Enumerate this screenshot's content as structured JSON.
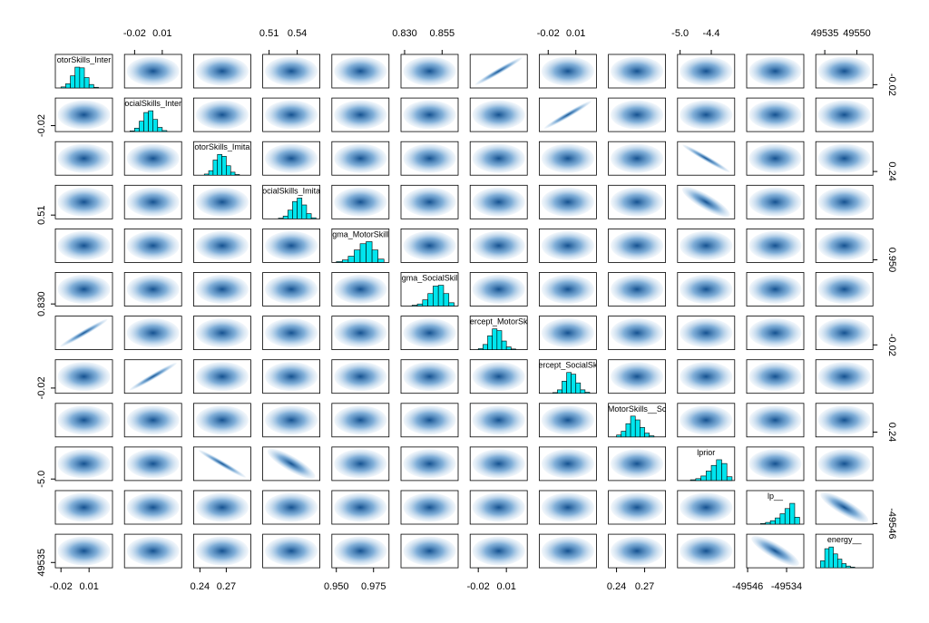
{
  "chart_data": {
    "type": "pairs",
    "color": "#00e5ee",
    "point_color": "#0b5a9c",
    "variables": [
      {
        "label": "otorSkills_Inter",
        "lim": [
          -0.026,
          0.035
        ],
        "xticks": [
          -0.02,
          0.01
        ],
        "yticks": [
          -0.02
        ],
        "bins": [
          -0.02,
          -0.015,
          -0.01,
          -0.005,
          0,
          0.005,
          0.01,
          0.015,
          0.02
        ],
        "counts": [
          3,
          12,
          35,
          60,
          58,
          30,
          10,
          2
        ]
      },
      {
        "label": "ocialSkills_Inter",
        "lim": [
          -0.031,
          0.031
        ],
        "xticks": [
          -0.02,
          0.01
        ],
        "yticks": [
          -0.02
        ],
        "bins": [
          -0.025,
          -0.02,
          -0.015,
          -0.01,
          -0.005,
          0,
          0.005,
          0.01,
          0.015
        ],
        "counts": [
          2,
          10,
          30,
          55,
          60,
          35,
          12,
          3
        ]
      },
      {
        "label": "otorSkills_Imita",
        "lim": [
          0.2328,
          0.2979
        ],
        "xticks": [
          0.24,
          0.27
        ],
        "yticks": [
          0.24
        ],
        "bins": [
          0.245,
          0.25,
          0.255,
          0.26,
          0.265,
          0.27,
          0.275,
          0.28,
          0.285
        ],
        "counts": [
          3,
          12,
          40,
          55,
          50,
          25,
          8,
          2
        ]
      },
      {
        "label": "ocialSkills_Imita",
        "lim": [
          0.5032,
          0.5642
        ],
        "xticks": [
          0.51,
          0.54
        ],
        "yticks": [
          0.51
        ],
        "bins": [
          0.52,
          0.525,
          0.53,
          0.535,
          0.54,
          0.545,
          0.55,
          0.555,
          0.56
        ],
        "counts": [
          2,
          8,
          25,
          50,
          60,
          40,
          15,
          3
        ]
      },
      {
        "label": "gma_MotorSkill",
        "lim": [
          0.947,
          0.9854
        ],
        "xticks": [
          {
            "value": 0.95,
            "label": "0.950"
          },
          0.975
        ],
        "yticks": [
          {
            "value": 0.95,
            "label": "0.950"
          }
        ],
        "bins": [
          0.95,
          0.954,
          0.958,
          0.962,
          0.966,
          0.97,
          0.974,
          0.978,
          0.982
        ],
        "counts": [
          2,
          6,
          15,
          30,
          45,
          50,
          30,
          8
        ]
      },
      {
        "label": "gma_SocialSkil",
        "lim": [
          0.8276,
          0.8657
        ],
        "xticks": [
          {
            "value": 0.83,
            "label": "0.830"
          },
          0.855
        ],
        "yticks": [
          {
            "value": 0.83,
            "label": "0.830"
          }
        ],
        "bins": [
          0.835,
          0.8385,
          0.842,
          0.8455,
          0.849,
          0.8525,
          0.856,
          0.8595,
          0.863
        ],
        "counts": [
          2,
          5,
          15,
          30,
          48,
          50,
          30,
          8
        ]
      },
      {
        "label": "ercept_MotorSk",
        "lim": [
          -0.0287,
          0.0323
        ],
        "xticks": [
          -0.02,
          0.01
        ],
        "yticks": [
          -0.02
        ],
        "bins": [
          -0.02,
          -0.015,
          -0.01,
          -0.005,
          0,
          0.005,
          0.01,
          0.015,
          0.02
        ],
        "counts": [
          3,
          15,
          40,
          60,
          55,
          25,
          8,
          2
        ]
      },
      {
        "label": "ercept_SocialSk",
        "lim": [
          -0.0297,
          0.0323
        ],
        "xticks": [
          -0.02,
          0.01
        ],
        "yticks": [
          -0.02
        ],
        "bins": [
          -0.015,
          -0.01,
          -0.005,
          0,
          0.005,
          0.01,
          0.015,
          0.02,
          0.025
        ],
        "counts": [
          2,
          10,
          35,
          60,
          55,
          30,
          10,
          3
        ]
      },
      {
        "label": "MotorSkills__Sc",
        "lim": [
          0.2313,
          0.2923
        ],
        "xticks": [
          0.24,
          0.27
        ],
        "yticks": [
          0.24
        ],
        "bins": [
          0.24,
          0.245,
          0.25,
          0.255,
          0.26,
          0.265,
          0.27,
          0.275,
          0.28
        ],
        "counts": [
          5,
          15,
          35,
          55,
          45,
          25,
          10,
          3
        ]
      },
      {
        "label": "lprior",
        "lim": [
          -5.05,
          -3.95
        ],
        "xticks": [
          {
            "value": -5,
            "label": "-5.0"
          },
          -4.4
        ],
        "yticks": [
          {
            "value": -5,
            "label": "-5.0"
          }
        ],
        "bins": [
          -4.8,
          -4.7,
          -4.6,
          -4.5,
          -4.4,
          -4.3,
          -4.2,
          -4.1,
          -4.0
        ],
        "counts": [
          2,
          5,
          12,
          25,
          40,
          55,
          45,
          10
        ]
      },
      {
        "label": "lp__",
        "lim": [
          -49546.3,
          -49528.7
        ],
        "xticks": [
          -49546,
          -49534
        ],
        "yticks": [
          -49546
        ],
        "bins": [
          -49542,
          -49540.5,
          -49539,
          -49537.5,
          -49536,
          -49534.5,
          -49533,
          -49531.5,
          -49530
        ],
        "counts": [
          2,
          5,
          10,
          18,
          30,
          45,
          60,
          20
        ]
      },
      {
        "label": "energy__",
        "lim": [
          49530.8,
          49557.5
        ],
        "xticks": [
          49535,
          49550
        ],
        "yticks": [
          49535
        ],
        "bins": [
          49533,
          49535,
          49537,
          49539,
          49541,
          49543,
          49545,
          49547,
          49549
        ],
        "counts": [
          20,
          55,
          60,
          40,
          25,
          12,
          5,
          2
        ]
      }
    ]
  }
}
